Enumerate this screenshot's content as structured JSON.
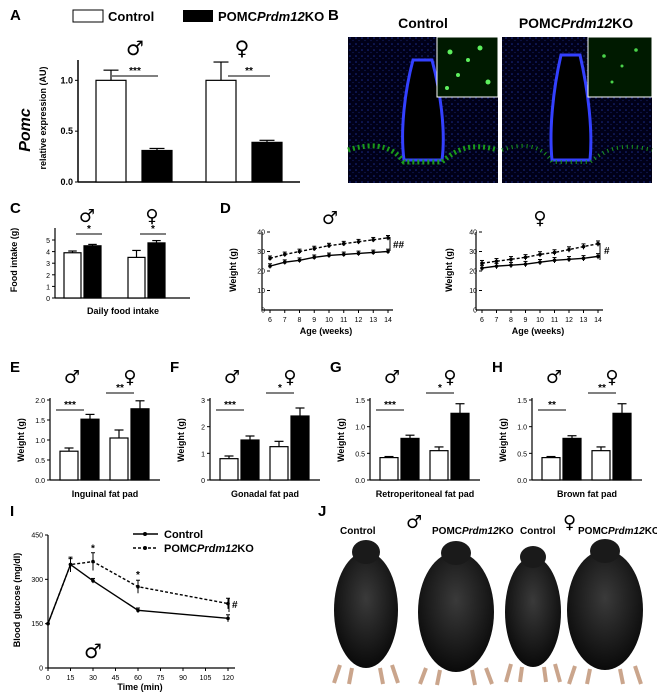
{
  "legend_top": {
    "control": "Control",
    "ko_prefix": "POMC",
    "ko_gene": "Prdm12",
    "ko_suffix": "KO"
  },
  "panelA": {
    "label": "A",
    "ylabel_main": "Pomc",
    "ylabel_sub": "relative expression (AU)",
    "male_symbol": "♂",
    "female_symbol": "♀",
    "stars_male": "***",
    "stars_female": "**"
  },
  "panelB": {
    "label": "B",
    "left_title": "Control",
    "right_title_prefix": "POMC",
    "right_title_gene": "Prdm12",
    "right_title_suffix": "KO"
  },
  "panelC": {
    "label": "C",
    "ylabel": "Food intake (g)",
    "xlabel": "Daily food intake",
    "male_symbol": "♂",
    "female_symbol": "♀",
    "stars_male": "*",
    "stars_female": "*"
  },
  "panelD": {
    "label": "D",
    "ylabel": "Weight (g)",
    "xlabel": "Age (weeks)",
    "male_symbol": "♂",
    "female_symbol": "♀",
    "sig_male": "##",
    "sig_female": "#"
  },
  "panelE": {
    "label": "E",
    "ylabel": "Weight (g)",
    "xlabel": "Inguinal fat pad",
    "stars_male": "***",
    "stars_female": "**",
    "male_symbol": "♂",
    "female_symbol": "♀"
  },
  "panelF": {
    "label": "F",
    "ylabel": "Weight (g)",
    "xlabel": "Gonadal fat pad",
    "stars_male": "***",
    "stars_female": "*",
    "male_symbol": "♂",
    "female_symbol": "♀"
  },
  "panelG": {
    "label": "G",
    "ylabel": "Weight (g)",
    "xlabel": "Retroperitoneal fat pad",
    "stars_male": "***",
    "stars_female": "*",
    "male_symbol": "♂",
    "female_symbol": "♀"
  },
  "panelH": {
    "label": "H",
    "ylabel": "Weight (g)",
    "xlabel": "Brown fat pad",
    "stars_male": "**",
    "stars_female": "**",
    "male_symbol": "♂",
    "female_symbol": "♀"
  },
  "panelI": {
    "label": "I",
    "ylabel": "Blood glucose (mg/dl)",
    "xlabel": "Time (min)",
    "legend_control": "Control",
    "legend_ko_prefix": "POMC",
    "legend_ko_gene": "Prdm12",
    "legend_ko_suffix": "KO",
    "sig": "#",
    "male_symbol": "♂"
  },
  "panelJ": {
    "label": "J",
    "male_symbol": "♂",
    "female_symbol": "♀",
    "left_control": "Control",
    "left_ko_prefix": "POMC",
    "left_ko_gene": "Prdm12",
    "left_ko_suffix": "KO",
    "right_control": "Control",
    "right_ko_prefix": "POMC",
    "right_ko_gene": "Prdm12",
    "right_ko_suffix": "KO"
  },
  "chart_data": [
    {
      "id": "A",
      "type": "bar",
      "categories": [
        "♂",
        "♀"
      ],
      "series": [
        {
          "name": "Control",
          "values": [
            1.0,
            1.0
          ],
          "errors": [
            0.1,
            0.18
          ]
        },
        {
          "name": "POMCPrdm12KO",
          "values": [
            0.31,
            0.39
          ],
          "errors": [
            0.02,
            0.02
          ]
        }
      ],
      "ylim": [
        0,
        1.2
      ],
      "yticks": [
        0.0,
        0.5,
        1.0
      ]
    },
    {
      "id": "C",
      "type": "bar",
      "categories": [
        "♂",
        "♀"
      ],
      "series": [
        {
          "name": "Control",
          "values": [
            3.9,
            3.5
          ],
          "errors": [
            0.15,
            0.6
          ]
        },
        {
          "name": "POMCPrdm12KO",
          "values": [
            4.5,
            4.75
          ],
          "errors": [
            0.12,
            0.2
          ]
        }
      ],
      "ylim": [
        0,
        5
      ],
      "yticks": [
        0,
        1,
        2,
        3,
        4,
        5
      ]
    },
    {
      "id": "D_male",
      "type": "line",
      "x": [
        6,
        7,
        8,
        9,
        10,
        11,
        12,
        13,
        14
      ],
      "series": [
        {
          "name": "Control",
          "values": [
            22.5,
            24.5,
            25.5,
            27,
            28,
            28.5,
            29,
            29.5,
            30
          ]
        },
        {
          "name": "POMCPrdm12KO",
          "values": [
            26.5,
            28.5,
            30,
            31.5,
            33,
            34,
            35,
            36,
            37
          ]
        }
      ],
      "xlim": [
        6,
        14
      ],
      "ylim": [
        0,
        40
      ],
      "yticks": [
        0,
        10,
        20,
        30,
        40
      ]
    },
    {
      "id": "D_female",
      "type": "line",
      "x": [
        6,
        7,
        8,
        9,
        10,
        11,
        12,
        13,
        14
      ],
      "series": [
        {
          "name": "Control",
          "values": [
            21.5,
            22.5,
            23,
            23.5,
            24.5,
            25.5,
            26,
            26.5,
            27.5
          ]
        },
        {
          "name": "POMCPrdm12KO",
          "values": [
            24,
            25,
            26,
            27,
            28.5,
            29.5,
            31,
            32.5,
            34
          ]
        }
      ],
      "xlim": [
        6,
        14
      ],
      "ylim": [
        0,
        40
      ],
      "yticks": [
        0,
        10,
        20,
        30,
        40
      ]
    },
    {
      "id": "E",
      "type": "bar",
      "categories": [
        "♂",
        "♀"
      ],
      "series": [
        {
          "name": "Control",
          "values": [
            0.72,
            1.05
          ],
          "errors": [
            0.08,
            0.2
          ]
        },
        {
          "name": "POMCPrdm12KO",
          "values": [
            1.52,
            1.78
          ],
          "errors": [
            0.12,
            0.2
          ]
        }
      ],
      "ylim": [
        0,
        2
      ],
      "yticks": [
        0.0,
        0.5,
        1.0,
        1.5,
        2.0
      ]
    },
    {
      "id": "F",
      "type": "bar",
      "categories": [
        "♂",
        "♀"
      ],
      "series": [
        {
          "name": "Control",
          "values": [
            0.8,
            1.25
          ],
          "errors": [
            0.1,
            0.2
          ]
        },
        {
          "name": "POMCPrdm12KO",
          "values": [
            1.5,
            2.4
          ],
          "errors": [
            0.15,
            0.3
          ]
        }
      ],
      "ylim": [
        0,
        3
      ],
      "yticks": [
        0,
        1,
        2,
        3
      ]
    },
    {
      "id": "G",
      "type": "bar",
      "categories": [
        "♂",
        "♀"
      ],
      "series": [
        {
          "name": "Control",
          "values": [
            0.42,
            0.55
          ],
          "errors": [
            0.02,
            0.07
          ]
        },
        {
          "name": "POMCPrdm12KO",
          "values": [
            0.78,
            1.25
          ],
          "errors": [
            0.06,
            0.18
          ]
        }
      ],
      "ylim": [
        0,
        1.5
      ],
      "yticks": [
        0.0,
        0.5,
        1.0,
        1.5
      ]
    },
    {
      "id": "H",
      "type": "bar",
      "categories": [
        "♂",
        "♀"
      ],
      "series": [
        {
          "name": "Control",
          "values": [
            0.42,
            0.55
          ],
          "errors": [
            0.02,
            0.07
          ]
        },
        {
          "name": "POMCPrdm12KO",
          "values": [
            0.78,
            1.25
          ],
          "errors": [
            0.05,
            0.18
          ]
        }
      ],
      "ylim": [
        0,
        1.5
      ],
      "yticks": [
        0.0,
        0.5,
        1.0,
        1.5
      ]
    },
    {
      "id": "I",
      "type": "line",
      "x": [
        0,
        15,
        30,
        60,
        120
      ],
      "series": [
        {
          "name": "Control",
          "values": [
            150,
            350,
            295,
            195,
            168
          ],
          "errors": [
            0,
            20,
            8,
            8,
            12
          ]
        },
        {
          "name": "POMCPrdm12KO",
          "values": [
            150,
            350,
            360,
            275,
            218
          ],
          "errors": [
            0,
            25,
            30,
            22,
            18
          ]
        }
      ],
      "xlim": [
        0,
        120
      ],
      "ylim": [
        0,
        450
      ],
      "xticks": [
        0,
        15,
        30,
        45,
        60,
        75,
        90,
        105,
        120
      ],
      "yticks": [
        0,
        150,
        300,
        450
      ],
      "annotations": [
        "*",
        "*"
      ]
    }
  ]
}
